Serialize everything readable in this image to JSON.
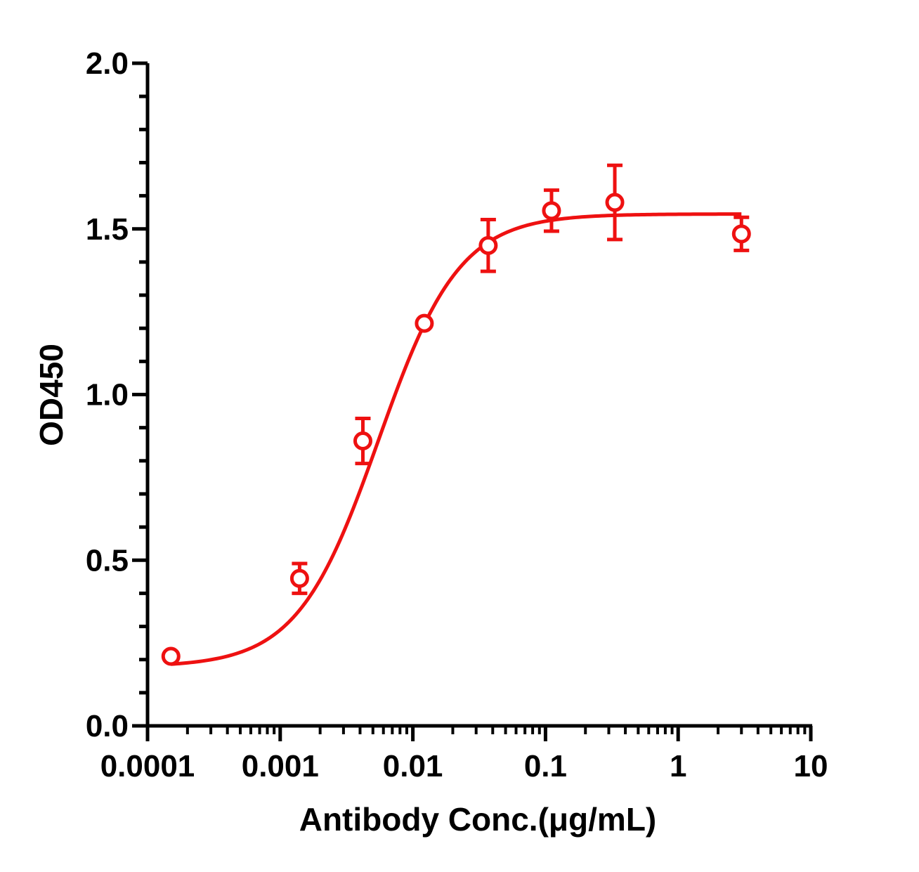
{
  "chart_data": {
    "type": "scatter",
    "xlabel": "Antibody Conc.(μg/mL)",
    "ylabel": "OD450",
    "x_scale": "log",
    "xlim": [
      0.0001,
      10
    ],
    "ylim": [
      0.0,
      2.0
    ],
    "x_tick_labels": [
      "0.0001",
      "0.001",
      "0.01",
      "0.1",
      "1",
      "10"
    ],
    "y_tick_labels": [
      "0.0",
      "0.5",
      "1.0",
      "1.5",
      "2.0"
    ],
    "grid": false,
    "series": [
      {
        "color": "#ee1111",
        "marker": "open-circle",
        "fit": "4PL",
        "points": [
          {
            "x": 0.00015,
            "y": 0.21,
            "err": 0.0
          },
          {
            "x": 0.0014,
            "y": 0.445,
            "err": 0.045
          },
          {
            "x": 0.0042,
            "y": 0.86,
            "err": 0.068
          },
          {
            "x": 0.0122,
            "y": 1.215,
            "err": 0.0
          },
          {
            "x": 0.037,
            "y": 1.45,
            "err": 0.078
          },
          {
            "x": 0.111,
            "y": 1.555,
            "err": 0.062
          },
          {
            "x": 0.333,
            "y": 1.58,
            "err": 0.112
          },
          {
            "x": 3.0,
            "y": 1.485,
            "err": 0.05
          }
        ],
        "curve": {
          "bottom": 0.178,
          "top": 1.545,
          "ec50": 0.0055,
          "hill": 1.42
        }
      }
    ]
  }
}
